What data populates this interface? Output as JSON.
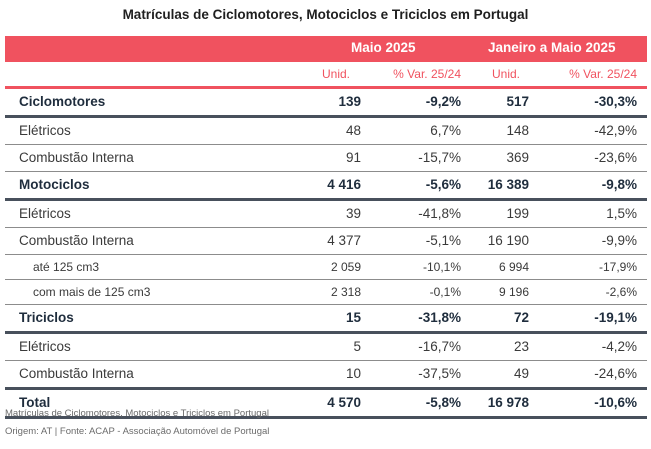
{
  "title": "Matrículas de Ciclomotores, Motociclos e Triciclos em Portugal",
  "header": {
    "period1": "Maio 2025",
    "period2": "Janeiro a Maio 2025",
    "unid": "Unid.",
    "var": "% Var. 25/24"
  },
  "rows": [
    {
      "label": "Ciclomotores",
      "u1": "139",
      "v1": "-9,2%",
      "u2": "517",
      "v2": "-30,3%"
    },
    {
      "label": "Elétricos",
      "u1": "48",
      "v1": "6,7%",
      "u2": "148",
      "v2": "-42,9%"
    },
    {
      "label": "Combustão Interna",
      "u1": "91",
      "v1": "-15,7%",
      "u2": "369",
      "v2": "-23,6%"
    },
    {
      "label": "Motociclos",
      "u1": "4 416",
      "v1": "-5,6%",
      "u2": "16 389",
      "v2": "-9,8%"
    },
    {
      "label": "Elétricos",
      "u1": "39",
      "v1": "-41,8%",
      "u2": "199",
      "v2": "1,5%"
    },
    {
      "label": "Combustão Interna",
      "u1": "4 377",
      "v1": "-5,1%",
      "u2": "16 190",
      "v2": "-9,9%"
    },
    {
      "label": "até 125 cm3",
      "u1": "2 059",
      "v1": "-10,1%",
      "u2": "6 994",
      "v2": "-17,9%"
    },
    {
      "label": "com mais de 125 cm3",
      "u1": "2 318",
      "v1": "-0,1%",
      "u2": "9 196",
      "v2": "-2,6%"
    },
    {
      "label": "Triciclos",
      "u1": "15",
      "v1": "-31,8%",
      "u2": "72",
      "v2": "-19,1%"
    },
    {
      "label": "Elétricos",
      "u1": "5",
      "v1": "-16,7%",
      "u2": "23",
      "v2": "-4,2%"
    },
    {
      "label": "Combustão Interna",
      "u1": "10",
      "v1": "-37,5%",
      "u2": "49",
      "v2": "-24,6%"
    },
    {
      "label": "Total",
      "u1": "4 570",
      "v1": "-5,8%",
      "u2": "16 978",
      "v2": "-10,6%"
    }
  ],
  "footer": {
    "line1": "Matrículas de Ciclomotores, Motociclos e Triciclos em Portugal",
    "line2": "Origem: AT | Fonte: ACAP - Associação Automóvel de Portugal"
  },
  "colors": {
    "accent": "#f0525f",
    "dark_rule": "#48505c"
  }
}
